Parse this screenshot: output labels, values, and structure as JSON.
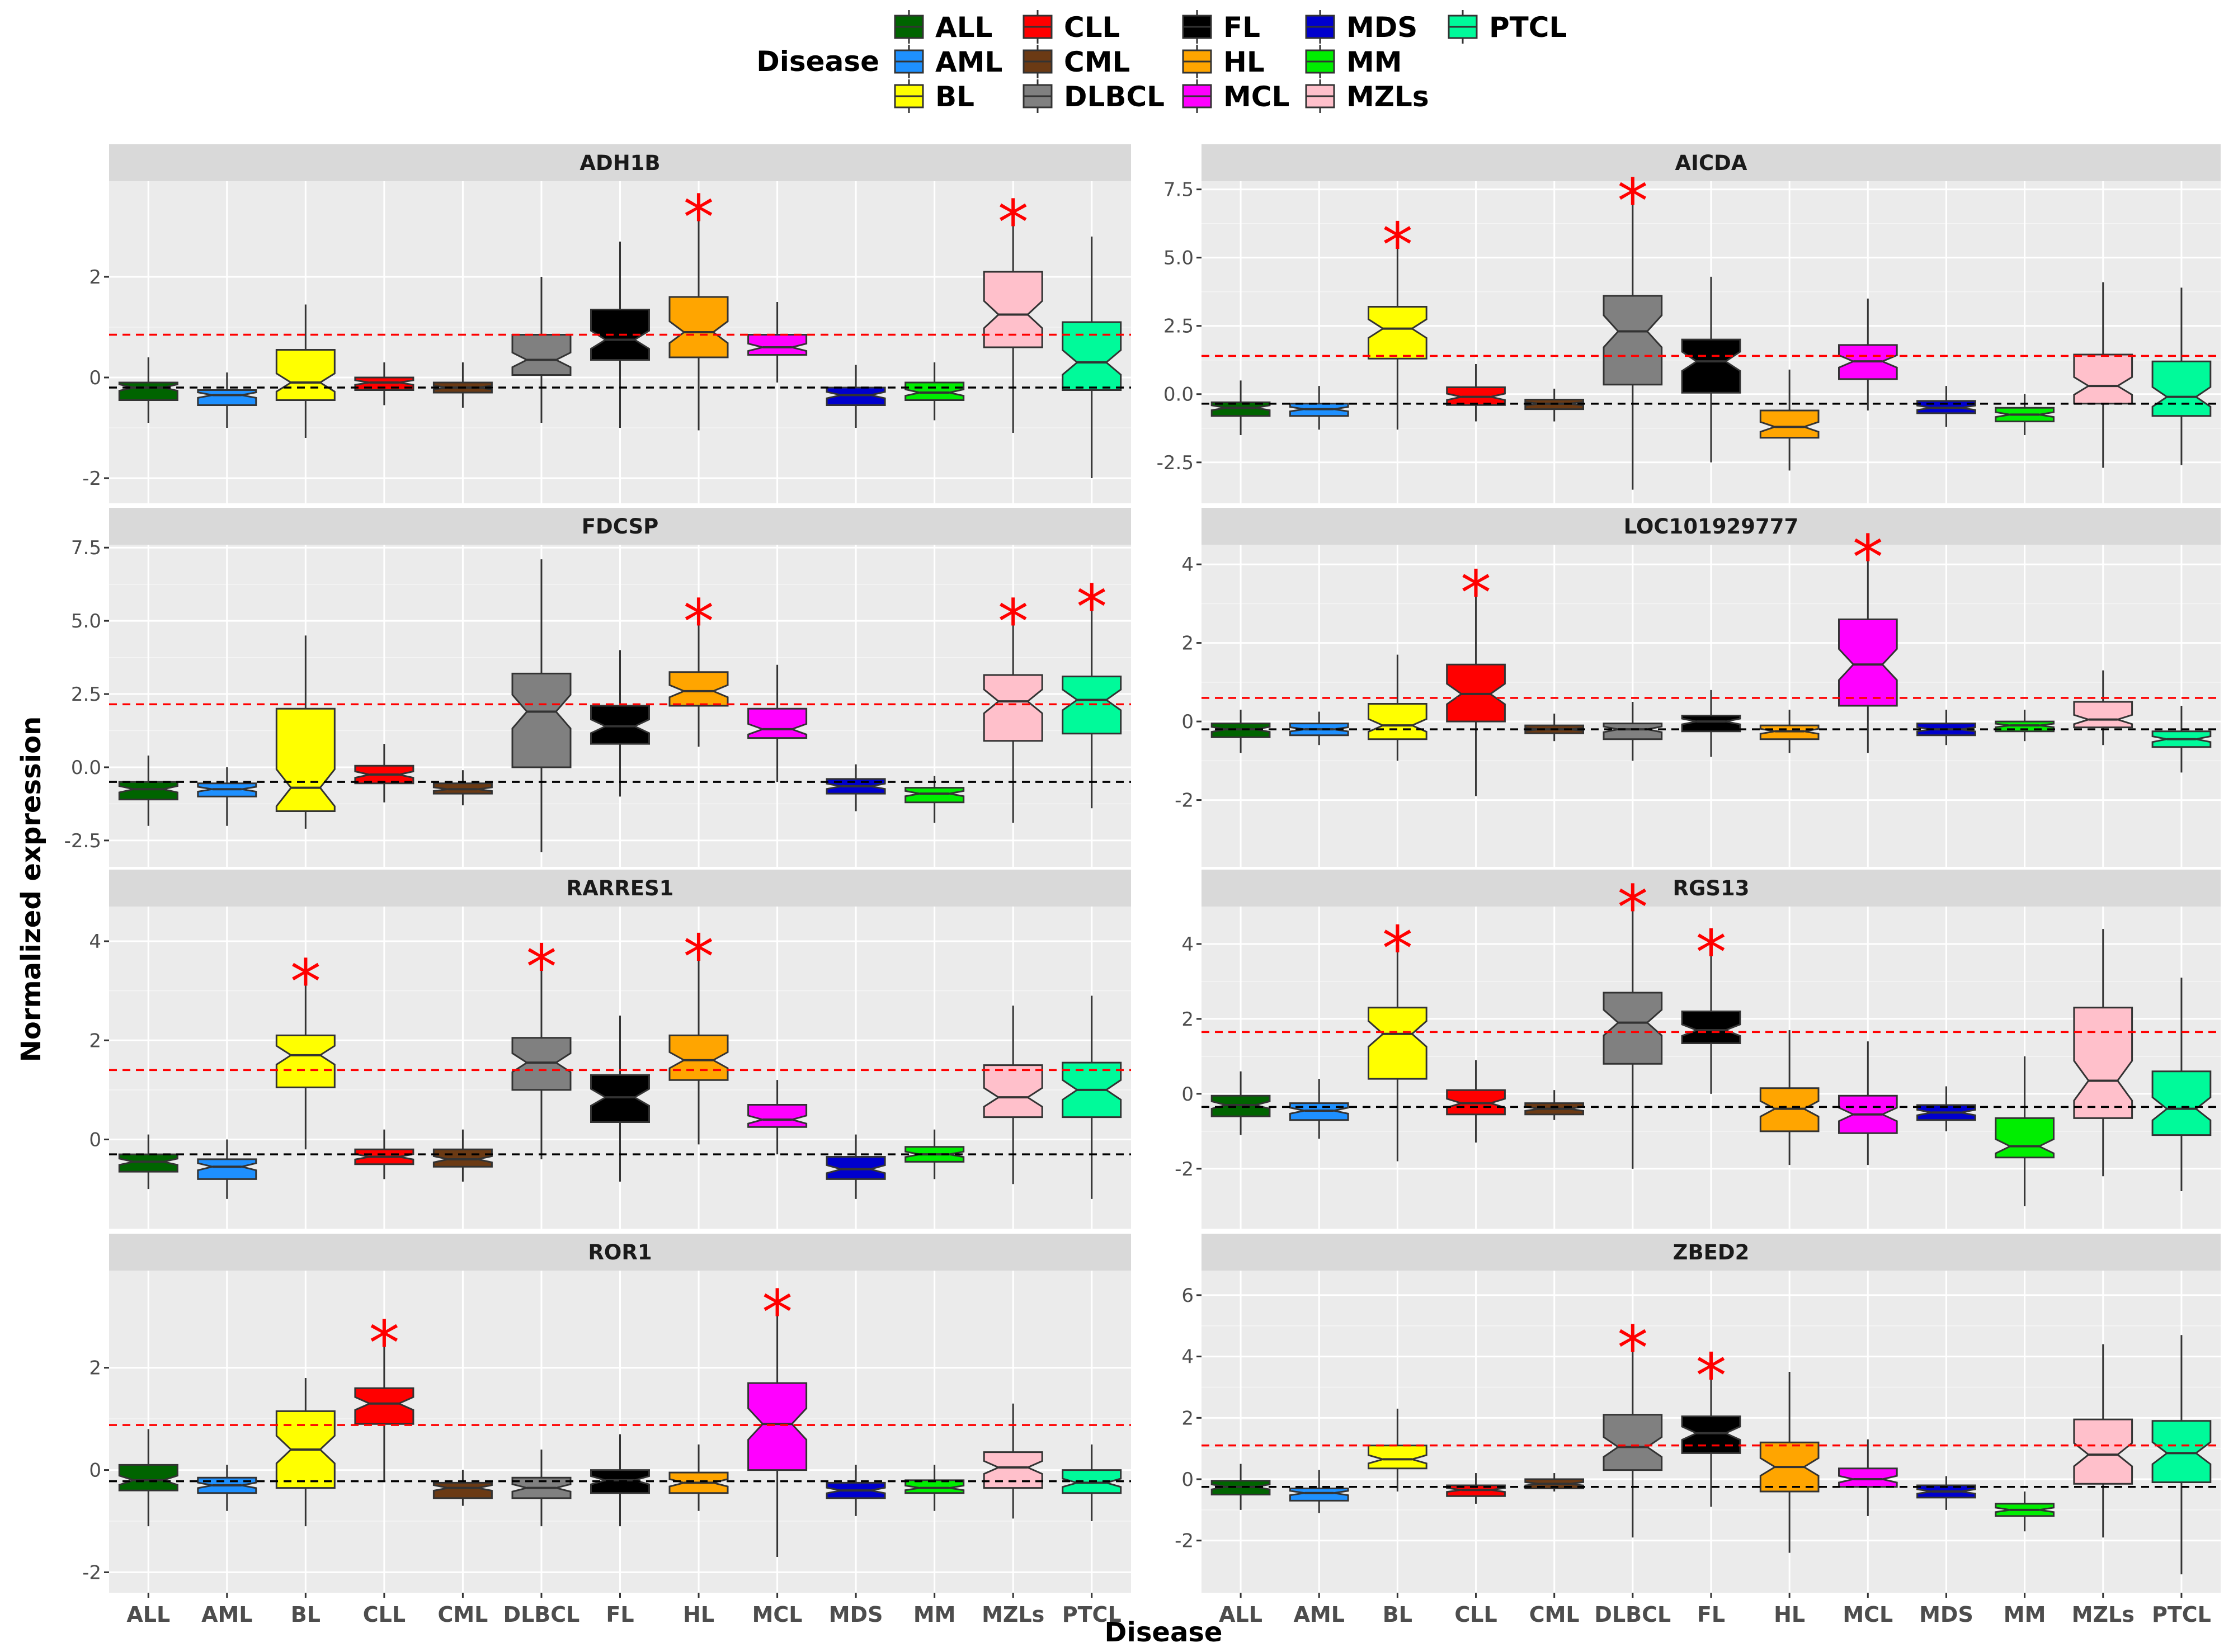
{
  "chart_data": {
    "type": "boxplot",
    "legend": {
      "title": "Disease",
      "placement": "top",
      "entries": [
        {
          "label": "ALL",
          "color": "#006400"
        },
        {
          "label": "AML",
          "color": "#1E90FF"
        },
        {
          "label": "BL",
          "color": "#FFFF00"
        },
        {
          "label": "CLL",
          "color": "#FF0000"
        },
        {
          "label": "CML",
          "color": "#6B3A14"
        },
        {
          "label": "DLBCL",
          "color": "#808080"
        },
        {
          "label": "FL",
          "color": "#000000"
        },
        {
          "label": "HL",
          "color": "#FFA500"
        },
        {
          "label": "MCL",
          "color": "#FF00FF"
        },
        {
          "label": "MDS",
          "color": "#0000CD"
        },
        {
          "label": "MM",
          "color": "#00EE00"
        },
        {
          "label": "MZLs",
          "color": "#FFC0CB"
        },
        {
          "label": "PTCL",
          "color": "#00FA9A"
        }
      ]
    },
    "categories": [
      "ALL",
      "AML",
      "BL",
      "CLL",
      "CML",
      "DLBCL",
      "FL",
      "HL",
      "MCL",
      "MDS",
      "MM",
      "MZLs",
      "PTCL"
    ],
    "xlabel": "Disease",
    "ylabel": "Normalized expression",
    "panels": [
      {
        "title": "ADH1B",
        "ylim": [
          -2.5,
          3.9
        ],
        "yticks": [
          -2,
          0,
          2
        ],
        "ref_red": 0.85,
        "ref_black": -0.2,
        "stars": [
          "HL",
          "MZLs"
        ],
        "boxes": [
          [
            -0.9,
            -0.45,
            -0.2,
            -0.1,
            0.4
          ],
          [
            -1.0,
            -0.55,
            -0.35,
            -0.25,
            0.1
          ],
          [
            -1.2,
            -0.45,
            -0.1,
            0.55,
            1.45
          ],
          [
            -0.55,
            -0.25,
            -0.1,
            0.0,
            0.3
          ],
          [
            -0.6,
            -0.3,
            -0.2,
            -0.1,
            0.3
          ],
          [
            -0.9,
            0.05,
            0.35,
            0.85,
            2.0
          ],
          [
            -1.0,
            0.35,
            0.75,
            1.35,
            2.7
          ],
          [
            -1.05,
            0.4,
            0.9,
            1.6,
            3.2
          ],
          [
            -0.1,
            0.45,
            0.6,
            0.85,
            1.5
          ],
          [
            -1.0,
            -0.55,
            -0.35,
            -0.2,
            0.25
          ],
          [
            -0.85,
            -0.45,
            -0.3,
            -0.1,
            0.3
          ],
          [
            -1.1,
            0.6,
            1.25,
            2.1,
            3.1
          ],
          [
            -2.0,
            -0.25,
            0.3,
            1.1,
            2.8
          ]
        ]
      },
      {
        "title": "AICDA",
        "ylim": [
          -4.0,
          7.8
        ],
        "yticks": [
          -2.5,
          0.0,
          2.5,
          5.0,
          7.5
        ],
        "ref_red": 1.4,
        "ref_black": -0.35,
        "stars": [
          "BL",
          "DLBCL"
        ],
        "boxes": [
          [
            -1.5,
            -0.8,
            -0.5,
            -0.3,
            0.5
          ],
          [
            -1.3,
            -0.8,
            -0.55,
            -0.35,
            0.3
          ],
          [
            -1.3,
            1.3,
            2.4,
            3.2,
            5.5
          ],
          [
            -1.0,
            -0.4,
            -0.1,
            0.25,
            1.1
          ],
          [
            -1.0,
            -0.55,
            -0.35,
            -0.2,
            0.2
          ],
          [
            -3.5,
            0.35,
            2.3,
            3.6,
            7.1
          ],
          [
            -2.5,
            0.05,
            1.2,
            2.0,
            4.3
          ],
          [
            -2.8,
            -1.6,
            -1.2,
            -0.6,
            0.9
          ],
          [
            -0.6,
            0.55,
            1.2,
            1.8,
            3.5
          ],
          [
            -1.2,
            -0.7,
            -0.5,
            -0.25,
            0.3
          ],
          [
            -1.5,
            -1.0,
            -0.75,
            -0.5,
            0.0
          ],
          [
            -2.7,
            -0.35,
            0.3,
            1.45,
            4.1
          ],
          [
            -2.6,
            -0.8,
            -0.1,
            1.2,
            3.9
          ]
        ]
      },
      {
        "title": "FDCSP",
        "ylim": [
          -3.4,
          7.6
        ],
        "yticks": [
          -2.5,
          0.0,
          2.5,
          5.0,
          7.5
        ],
        "ref_red": 2.15,
        "ref_black": -0.5,
        "stars": [
          "HL",
          "MZLs",
          "PTCL"
        ],
        "boxes": [
          [
            -2.0,
            -1.1,
            -0.75,
            -0.5,
            0.4
          ],
          [
            -2.0,
            -1.0,
            -0.75,
            -0.55,
            0.0
          ],
          [
            -2.1,
            -1.5,
            -0.7,
            2.0,
            4.5
          ],
          [
            -1.2,
            -0.55,
            -0.25,
            0.05,
            0.8
          ],
          [
            -1.3,
            -0.9,
            -0.75,
            -0.55,
            -0.1
          ],
          [
            -2.9,
            0.0,
            1.9,
            3.2,
            7.1
          ],
          [
            -1.0,
            0.8,
            1.4,
            2.1,
            4.0
          ],
          [
            0.7,
            2.1,
            2.6,
            3.25,
            5.0
          ],
          [
            -0.5,
            1.0,
            1.3,
            2.0,
            3.5
          ],
          [
            -1.5,
            -0.9,
            -0.65,
            -0.4,
            0.1
          ],
          [
            -1.9,
            -1.2,
            -0.9,
            -0.7,
            -0.3
          ],
          [
            -1.9,
            0.9,
            2.25,
            3.15,
            5.0
          ],
          [
            -1.4,
            1.15,
            2.3,
            3.1,
            5.5
          ]
        ]
      },
      {
        "title": "LOC101929777",
        "ylim": [
          -3.7,
          4.5
        ],
        "yticks": [
          -2,
          0,
          2,
          4
        ],
        "ref_red": 0.6,
        "ref_black": -0.2,
        "stars": [
          "CLL",
          "MCL"
        ],
        "boxes": [
          [
            -0.8,
            -0.4,
            -0.2,
            -0.05,
            0.3
          ],
          [
            -0.6,
            -0.35,
            -0.2,
            -0.05,
            0.25
          ],
          [
            -1.0,
            -0.45,
            -0.1,
            0.45,
            1.7
          ],
          [
            -1.9,
            0.0,
            0.7,
            1.45,
            3.3
          ],
          [
            -0.5,
            -0.3,
            -0.2,
            -0.1,
            0.2
          ],
          [
            -1.0,
            -0.45,
            -0.2,
            -0.05,
            0.5
          ],
          [
            -0.9,
            -0.25,
            0.0,
            0.15,
            0.8
          ],
          [
            -0.8,
            -0.45,
            -0.25,
            -0.1,
            0.3
          ],
          [
            -0.8,
            0.4,
            1.45,
            2.6,
            4.2
          ],
          [
            -0.6,
            -0.35,
            -0.2,
            -0.05,
            0.3
          ],
          [
            -0.5,
            -0.25,
            -0.1,
            0.0,
            0.3
          ],
          [
            -0.6,
            -0.15,
            0.05,
            0.5,
            1.3
          ],
          [
            -1.3,
            -0.65,
            -0.45,
            -0.25,
            0.4
          ]
        ]
      },
      {
        "title": "RARRES1",
        "ylim": [
          -1.8,
          4.7
        ],
        "yticks": [
          0,
          2,
          4
        ],
        "ref_red": 1.4,
        "ref_black": -0.3,
        "stars": [
          "BL",
          "DLBCL",
          "HL"
        ],
        "boxes": [
          [
            -1.0,
            -0.65,
            -0.45,
            -0.3,
            0.1
          ],
          [
            -1.2,
            -0.8,
            -0.55,
            -0.4,
            0.0
          ],
          [
            -0.2,
            1.05,
            1.7,
            2.1,
            3.2
          ],
          [
            -0.8,
            -0.5,
            -0.35,
            -0.2,
            0.2
          ],
          [
            -0.85,
            -0.55,
            -0.4,
            -0.2,
            0.2
          ],
          [
            -0.4,
            1.0,
            1.55,
            2.05,
            3.5
          ],
          [
            -0.85,
            0.35,
            0.85,
            1.3,
            2.5
          ],
          [
            -0.1,
            1.2,
            1.6,
            2.1,
            3.7
          ],
          [
            -0.3,
            0.25,
            0.4,
            0.7,
            1.2
          ],
          [
            -1.2,
            -0.8,
            -0.6,
            -0.35,
            0.1
          ],
          [
            -0.8,
            -0.45,
            -0.3,
            -0.15,
            0.2
          ],
          [
            -0.9,
            0.45,
            0.85,
            1.5,
            2.7
          ],
          [
            -1.2,
            0.45,
            1.0,
            1.55,
            2.9
          ]
        ]
      },
      {
        "title": "RGS13",
        "ylim": [
          -3.6,
          5.0
        ],
        "yticks": [
          -2,
          0,
          2,
          4
        ],
        "ref_red": 1.65,
        "ref_black": -0.35,
        "stars": [
          "BL",
          "DLBCL",
          "FL"
        ],
        "boxes": [
          [
            -1.1,
            -0.6,
            -0.3,
            -0.05,
            0.6
          ],
          [
            -1.2,
            -0.7,
            -0.45,
            -0.25,
            0.4
          ],
          [
            -1.8,
            0.4,
            1.6,
            2.3,
            3.9
          ],
          [
            -1.3,
            -0.55,
            -0.25,
            0.1,
            0.9
          ],
          [
            -0.7,
            -0.55,
            -0.4,
            -0.25,
            0.1
          ],
          [
            -2.0,
            0.8,
            1.9,
            2.7,
            5.0
          ],
          [
            0.0,
            1.35,
            1.7,
            2.2,
            3.8
          ],
          [
            -1.9,
            -1.0,
            -0.4,
            0.15,
            1.7
          ],
          [
            -1.9,
            -1.05,
            -0.55,
            -0.05,
            1.4
          ],
          [
            -1.0,
            -0.7,
            -0.5,
            -0.3,
            0.2
          ],
          [
            -3.0,
            -1.7,
            -1.4,
            -0.65,
            1.0
          ],
          [
            -2.2,
            -0.65,
            0.35,
            2.3,
            4.4
          ],
          [
            -2.6,
            -1.1,
            -0.4,
            0.6,
            3.1
          ]
        ]
      },
      {
        "title": "ROR1",
        "ylim": [
          -2.4,
          3.9
        ],
        "yticks": [
          -2,
          0,
          2
        ],
        "ref_red": 0.88,
        "ref_black": -0.22,
        "stars": [
          "CLL",
          "MCL"
        ],
        "boxes": [
          [
            -1.1,
            -0.4,
            -0.2,
            0.1,
            0.8
          ],
          [
            -0.8,
            -0.45,
            -0.3,
            -0.15,
            0.1
          ],
          [
            -1.1,
            -0.35,
            0.4,
            1.15,
            1.8
          ],
          [
            -0.2,
            0.9,
            1.3,
            1.6,
            2.5
          ],
          [
            -0.7,
            -0.55,
            -0.35,
            -0.25,
            0.0
          ],
          [
            -1.1,
            -0.55,
            -0.35,
            -0.15,
            0.4
          ],
          [
            -1.1,
            -0.45,
            -0.2,
            0.0,
            0.7
          ],
          [
            -0.8,
            -0.45,
            -0.25,
            -0.05,
            0.5
          ],
          [
            -1.7,
            0.0,
            0.9,
            1.7,
            3.1
          ],
          [
            -0.9,
            -0.55,
            -0.4,
            -0.25,
            0.1
          ],
          [
            -0.8,
            -0.45,
            -0.35,
            -0.2,
            0.1
          ],
          [
            -0.95,
            -0.35,
            0.05,
            0.35,
            1.3
          ],
          [
            -1.0,
            -0.45,
            -0.25,
            0.0,
            0.5
          ]
        ]
      },
      {
        "title": "ZBED2",
        "ylim": [
          -3.7,
          6.8
        ],
        "yticks": [
          -2,
          0,
          2,
          4,
          6
        ],
        "ref_red": 1.1,
        "ref_black": -0.25,
        "stars": [
          "DLBCL",
          "FL"
        ],
        "boxes": [
          [
            -1.0,
            -0.5,
            -0.25,
            -0.05,
            0.5
          ],
          [
            -1.1,
            -0.7,
            -0.45,
            -0.3,
            0.3
          ],
          [
            -0.4,
            0.35,
            0.65,
            1.1,
            2.3
          ],
          [
            -0.8,
            -0.55,
            -0.35,
            -0.2,
            0.2
          ],
          [
            -0.4,
            -0.3,
            -0.15,
            0.0,
            0.2
          ],
          [
            -1.9,
            0.3,
            1.05,
            2.1,
            4.3
          ],
          [
            -0.9,
            0.85,
            1.5,
            2.05,
            3.4
          ],
          [
            -2.4,
            -0.4,
            0.4,
            1.2,
            3.5
          ],
          [
            -1.2,
            -0.25,
            0.0,
            0.35,
            1.3
          ],
          [
            -1.0,
            -0.6,
            -0.4,
            -0.2,
            0.1
          ],
          [
            -1.7,
            -1.2,
            -1.0,
            -0.8,
            -0.4
          ],
          [
            -1.9,
            -0.15,
            0.8,
            1.95,
            4.4
          ],
          [
            -3.1,
            -0.1,
            0.85,
            1.9,
            4.7
          ]
        ]
      }
    ]
  }
}
